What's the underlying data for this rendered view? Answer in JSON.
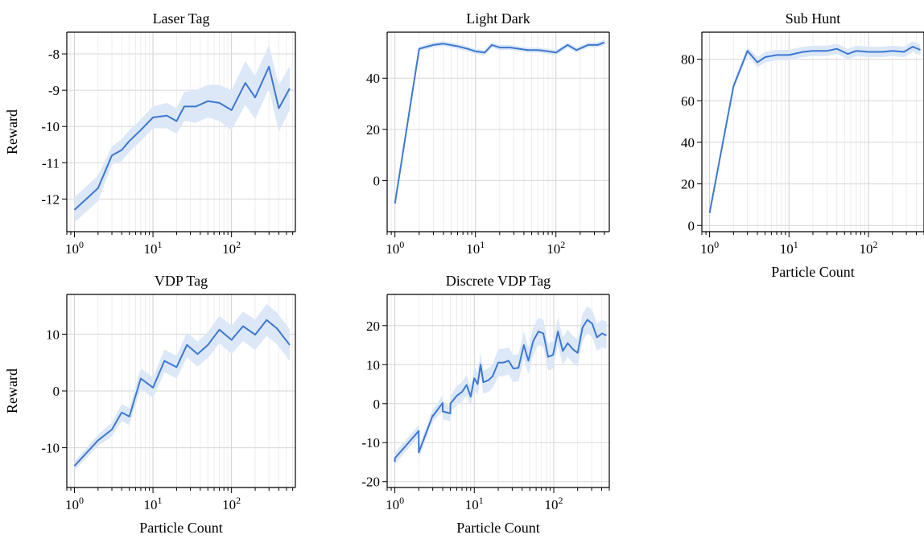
{
  "chart_data": [
    {
      "type": "line",
      "title": "Laser Tag",
      "xlabel": "",
      "ylabel": "Reward",
      "xscale": "log",
      "xlim": [
        0.8,
        650
      ],
      "ylim": [
        -12.9,
        -7.4
      ],
      "yticks": [
        -12,
        -11,
        -10,
        -9,
        -8
      ],
      "ytick_labels": [
        "-12",
        "-11",
        "-10",
        "-9",
        "-8"
      ],
      "xticks": [
        1,
        10,
        100
      ],
      "xtick_base": "10",
      "xtick_exponents": [
        "0",
        "1",
        "2"
      ],
      "grid": true,
      "color": "#3c78d0",
      "band_color": "#dce8f8",
      "x": [
        1,
        2,
        3,
        4,
        5,
        7,
        10,
        15,
        20,
        25,
        35,
        50,
        70,
        100,
        150,
        200,
        300,
        400,
        550
      ],
      "y": [
        -12.3,
        -11.7,
        -10.8,
        -10.65,
        -10.4,
        -10.1,
        -9.75,
        -9.7,
        -9.85,
        -9.45,
        -9.45,
        -9.3,
        -9.35,
        -9.55,
        -8.8,
        -9.2,
        -8.35,
        -9.5,
        -8.95
      ],
      "band": [
        0.35,
        0.35,
        0.25,
        0.3,
        0.3,
        0.3,
        0.3,
        0.35,
        0.35,
        0.4,
        0.45,
        0.45,
        0.5,
        0.55,
        0.6,
        0.6,
        0.6,
        0.65,
        0.6
      ]
    },
    {
      "type": "line",
      "title": "Light Dark",
      "xlabel": "",
      "ylabel": "",
      "xscale": "log",
      "xlim": [
        0.8,
        460
      ],
      "ylim": [
        -20,
        58
      ],
      "yticks": [
        0,
        20,
        40
      ],
      "ytick_labels": [
        "0",
        "20",
        "40"
      ],
      "xticks": [
        1,
        10,
        100
      ],
      "xtick_base": "10",
      "xtick_exponents": [
        "0",
        "1",
        "2"
      ],
      "grid": true,
      "color": "#3c78d0",
      "band_color": "#dce8f8",
      "x": [
        1,
        2,
        3,
        4,
        6,
        8,
        10,
        13,
        16,
        20,
        27,
        35,
        45,
        60,
        80,
        100,
        140,
        180,
        250,
        330,
        400
      ],
      "y": [
        -9,
        51.5,
        53,
        53.5,
        52.5,
        51.5,
        50.5,
        50,
        53,
        52,
        52,
        51.5,
        51,
        51,
        50.5,
        50,
        53,
        51,
        53,
        53,
        54
      ],
      "band": [
        1.2,
        0.9,
        1,
        1,
        1,
        1,
        1,
        1,
        1,
        1,
        1,
        1,
        1,
        1,
        1,
        1,
        1,
        1,
        1,
        1,
        1
      ]
    },
    {
      "type": "line",
      "title": "Sub Hunt",
      "xlabel": "Particle Count",
      "ylabel": "",
      "xscale": "log",
      "xlim": [
        0.8,
        500
      ],
      "ylim": [
        -3,
        93
      ],
      "yticks": [
        0,
        20,
        40,
        60,
        80
      ],
      "ytick_labels": [
        "0",
        "20",
        "40",
        "60",
        "80"
      ],
      "xticks": [
        1,
        10,
        100
      ],
      "xtick_base": "10",
      "xtick_exponents": [
        "0",
        "1",
        "2"
      ],
      "grid": true,
      "color": "#3c78d0",
      "band_color": "#dce8f8",
      "x": [
        1,
        2,
        3,
        4,
        5,
        7,
        10,
        15,
        20,
        30,
        40,
        55,
        70,
        100,
        150,
        200,
        280,
        360,
        450
      ],
      "y": [
        6,
        67,
        84,
        78.5,
        81,
        82,
        82,
        83.5,
        84,
        84,
        85,
        82.5,
        84,
        83.5,
        83.5,
        84,
        83.5,
        86,
        84.5
      ],
      "band": [
        1,
        1.5,
        2,
        2.5,
        2.5,
        2.5,
        2.5,
        2.5,
        2.5,
        2.5,
        2.5,
        2.5,
        2.5,
        2.5,
        2.5,
        2.5,
        2.5,
        2.5,
        2.5
      ]
    },
    {
      "type": "line",
      "title": "VDP Tag",
      "xlabel": "Particle Count",
      "ylabel": "Reward",
      "xscale": "log",
      "xlim": [
        0.8,
        650
      ],
      "ylim": [
        -17,
        17
      ],
      "yticks": [
        -10,
        0,
        10
      ],
      "ytick_labels": [
        "-10",
        "0",
        "10"
      ],
      "xticks": [
        1,
        10,
        100
      ],
      "xtick_base": "10",
      "xtick_exponents": [
        "0",
        "1",
        "2"
      ],
      "grid": true,
      "color": "#3c78d0",
      "band_color": "#dce8f8",
      "x": [
        1,
        2,
        3,
        4,
        5,
        7,
        10,
        14,
        20,
        27,
        37,
        50,
        70,
        100,
        140,
        200,
        280,
        380,
        550
      ],
      "y": [
        -13.2,
        -8.7,
        -6.8,
        -3.8,
        -4.5,
        2.2,
        0.6,
        5.3,
        4.2,
        8.1,
        6.5,
        8.1,
        10.8,
        9,
        11.4,
        9.9,
        12.5,
        11,
        8.1
      ],
      "band": [
        0.8,
        1,
        1.2,
        1.5,
        1.5,
        1.8,
        1.8,
        2,
        2,
        2.2,
        2.2,
        2.3,
        2.4,
        2.5,
        2.6,
        2.7,
        2.8,
        2.8,
        2.8
      ]
    },
    {
      "type": "line",
      "title": "Discrete VDP Tag",
      "xlabel": "Particle Count",
      "ylabel": "",
      "xscale": "log",
      "xlim": [
        0.8,
        500
      ],
      "ylim": [
        -21.5,
        28
      ],
      "yticks": [
        -20,
        -10,
        0,
        10,
        20
      ],
      "ytick_labels": [
        "-20",
        "-10",
        "0",
        "10",
        "20"
      ],
      "xticks": [
        1,
        10,
        100
      ],
      "xtick_base": "10",
      "xtick_exponents": [
        "0",
        "1",
        "2"
      ],
      "grid": true,
      "color": "#3c78d0",
      "band_color": "#dce8f8",
      "x": [
        1,
        1,
        2,
        2,
        3,
        3,
        4,
        4,
        4,
        5,
        5,
        6,
        7,
        8,
        9,
        10,
        11,
        12,
        13,
        15,
        17,
        20,
        23,
        27,
        31,
        36,
        42,
        48,
        55,
        64,
        74,
        85,
        98,
        113,
        130,
        150,
        173,
        200,
        230,
        265,
        305,
        350,
        405,
        460
      ],
      "y": [
        -15,
        -14,
        -7,
        -12.5,
        -3,
        -3.2,
        0.2,
        -1.5,
        -2,
        -2.5,
        0,
        2,
        3,
        4.8,
        1.8,
        6.5,
        5,
        10,
        5.5,
        6,
        7,
        10.5,
        10.5,
        11,
        9,
        9.2,
        15,
        11,
        16,
        18.5,
        18,
        12,
        12.5,
        18.5,
        13.5,
        15.5,
        14,
        13,
        19.5,
        21.5,
        20.5,
        17,
        18,
        17.5
      ],
      "band": [
        1.5,
        1.5,
        1.5,
        1.5,
        1.5,
        1.5,
        2,
        2,
        2,
        2,
        2,
        2.5,
        2.5,
        2.5,
        2.5,
        3,
        3,
        3,
        3,
        3,
        3,
        3.5,
        3.5,
        3.5,
        3.5,
        3.5,
        3.5,
        3.5,
        3.5,
        3.5,
        3.5,
        3.5,
        3.5,
        3.5,
        3.5,
        3.5,
        3.5,
        3.5,
        3.5,
        3.5,
        3.5,
        3.5,
        3.5,
        3.5
      ]
    }
  ]
}
